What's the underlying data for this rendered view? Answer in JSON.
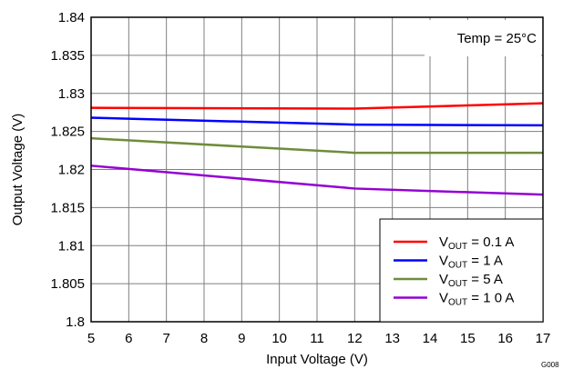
{
  "chart_data": {
    "type": "line",
    "xlabel": "Input Voltage (V)",
    "ylabel": "Output Voltage (V)",
    "xlim": [
      5,
      17
    ],
    "ylim": [
      1.8,
      1.84
    ],
    "x_ticks": [
      "5",
      "6",
      "7",
      "8",
      "9",
      "10",
      "11",
      "12",
      "13",
      "14",
      "15",
      "16",
      "17"
    ],
    "y_ticks": [
      "1.8",
      "1.805",
      "1.81",
      "1.815",
      "1.82",
      "1.825",
      "1.83",
      "1.835",
      "1.84"
    ],
    "grid": true,
    "legend_position": "bottom-right",
    "annotation": "Temp = 25°C",
    "figure_id": "G008",
    "series": [
      {
        "name_main": "V",
        "name_sub": "OUT",
        "name_rest": " = 0.1 A",
        "color": "#ff0000",
        "x": [
          5,
          12,
          17
        ],
        "y": [
          1.8281,
          1.828,
          1.8287
        ]
      },
      {
        "name_main": "V",
        "name_sub": "OUT",
        "name_rest": " = 1 A",
        "color": "#0000ff",
        "x": [
          5,
          12,
          17
        ],
        "y": [
          1.8268,
          1.8259,
          1.8258
        ]
      },
      {
        "name_main": "V",
        "name_sub": "OUT",
        "name_rest": " = 5 A",
        "color": "#6f8c3a",
        "x": [
          5,
          12,
          17
        ],
        "y": [
          1.8241,
          1.8222,
          1.8222
        ]
      },
      {
        "name_main": "V",
        "name_sub": "OUT",
        "name_rest": " = 1 0 A",
        "color": "#9400d3",
        "x": [
          5,
          12,
          17
        ],
        "y": [
          1.8205,
          1.8175,
          1.8167
        ]
      }
    ]
  }
}
